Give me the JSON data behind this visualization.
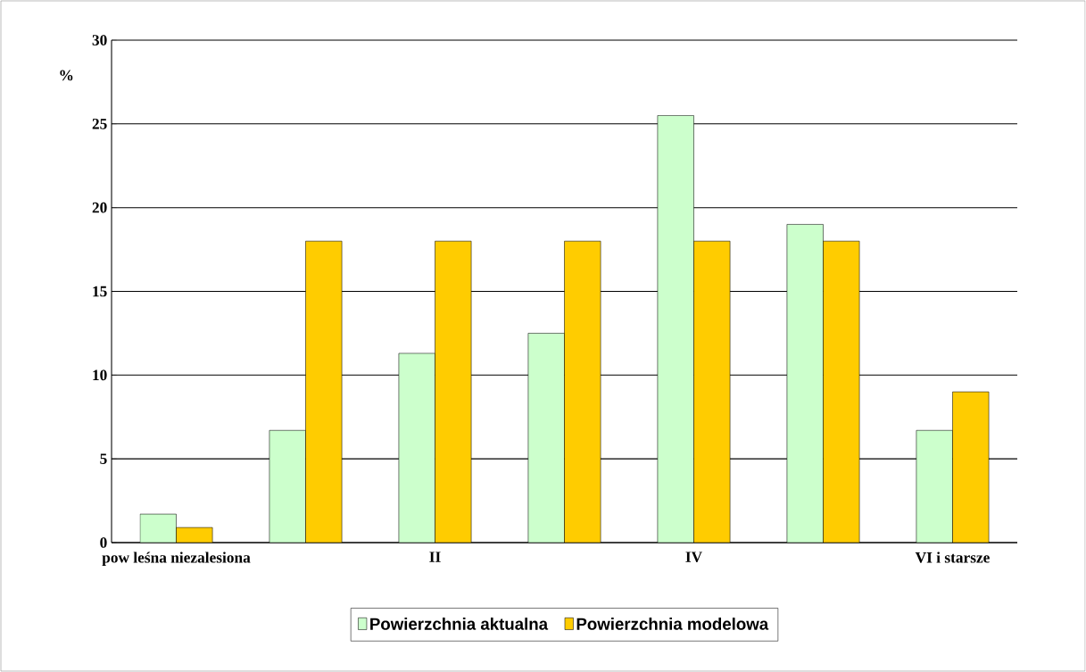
{
  "chart_data": {
    "type": "bar",
    "ylabel": "%",
    "categories": [
      "pow leśna niezalesiona",
      null,
      "II",
      null,
      "IV",
      null,
      "VI i starsze"
    ],
    "series": [
      {
        "name": "Powierzchnia aktualna",
        "color": "#ccffcc",
        "values": [
          1.7,
          6.7,
          11.3,
          12.5,
          25.5,
          19.0,
          6.7
        ]
      },
      {
        "name": "Powierzchnia modelowa",
        "color": "#ffcc00",
        "values": [
          0.9,
          18.0,
          18.0,
          18.0,
          18.0,
          18.0,
          9.0
        ]
      }
    ],
    "ylim": [
      0,
      30
    ],
    "yticks": [
      0,
      5,
      10,
      15,
      20,
      25,
      30
    ],
    "grid": "y",
    "legend": "bottom"
  }
}
